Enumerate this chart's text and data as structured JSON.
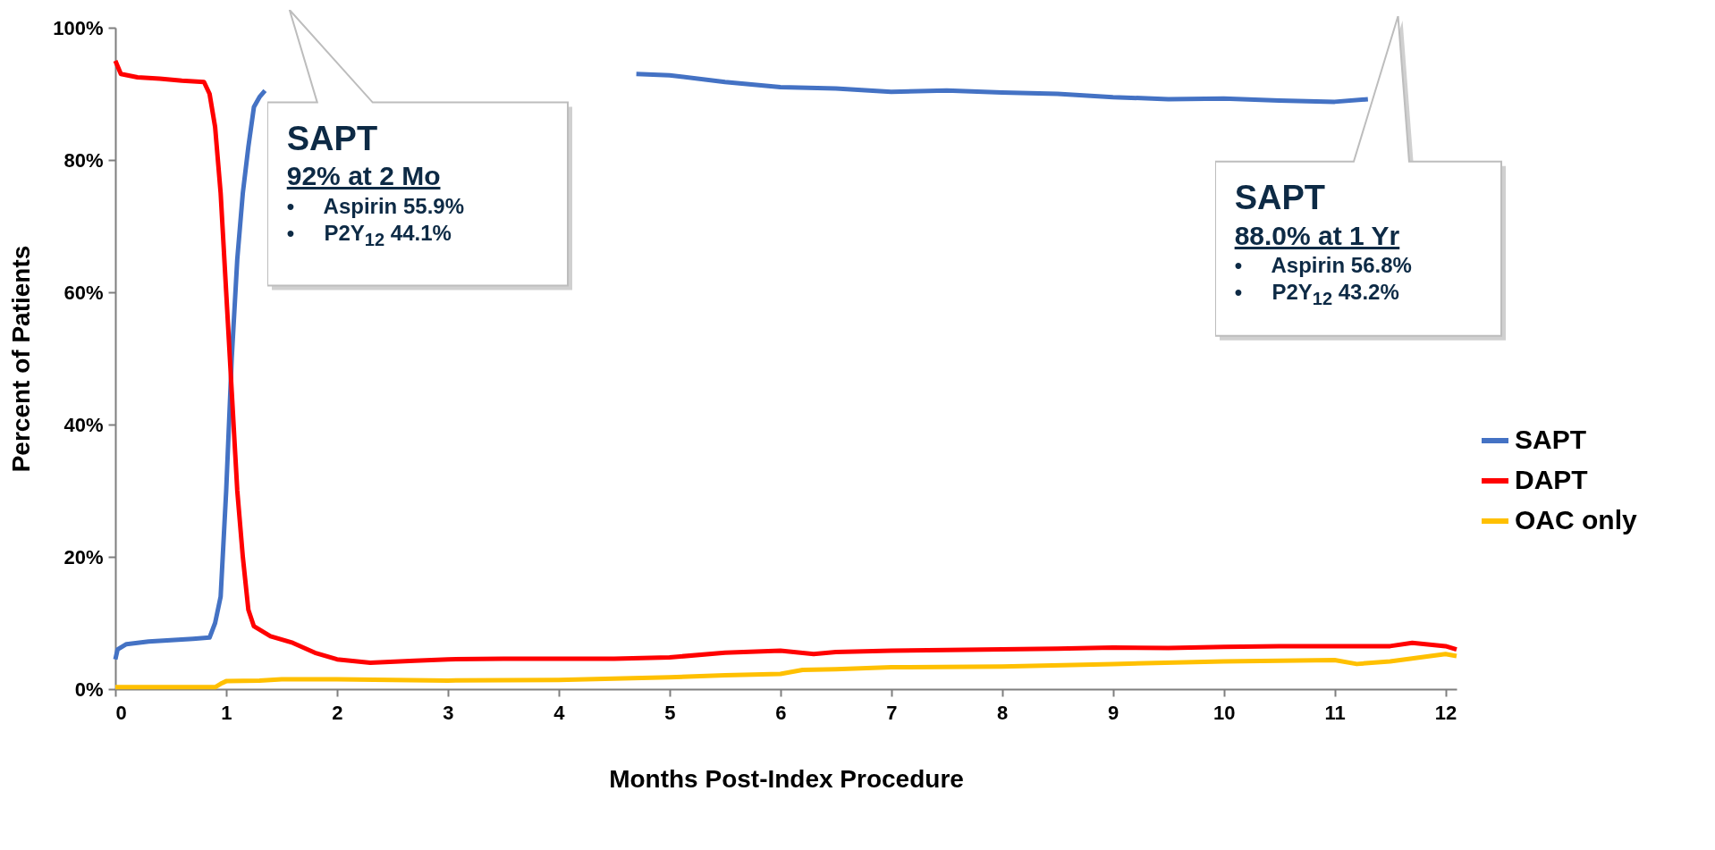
{
  "chart_data": {
    "type": "line",
    "xlabel": "Months Post-Index Procedure",
    "ylabel": "Percent of Patients",
    "xlim": [
      0,
      12.1
    ],
    "xticks": [
      0,
      1,
      2,
      3,
      4,
      5,
      6,
      7,
      8,
      9,
      10,
      11,
      12
    ],
    "ylim": [
      0,
      100
    ],
    "yticks": [
      {
        "value": 0,
        "label": "0%"
      },
      {
        "value": 20,
        "label": "20%"
      },
      {
        "value": 40,
        "label": "40%"
      },
      {
        "value": 60,
        "label": "60%"
      },
      {
        "value": 80,
        "label": "80%"
      },
      {
        "value": 100,
        "label": "100%"
      }
    ],
    "grid": false,
    "legend": "right",
    "marker": "none",
    "line_style": "solid",
    "annotations": [
      "SAPT\n92% at 2 Mo\n•     Aspirin 55.9%\n•     P2Y$_{12}$ 44.1%",
      "SAPT\n88.0% at 1 Yr\n•     Aspirin 56.8%\n•     P2Y$_{12}$ 43.2%"
    ],
    "series": [
      {
        "name": "SAPT",
        "color": "#4472c4",
        "x": [
          0,
          0.02,
          0.1,
          0.2,
          0.3,
          0.5,
          0.7,
          0.85,
          0.9,
          0.95,
          1.0,
          1.05,
          1.1,
          1.15,
          1.2,
          1.25,
          1.3,
          1.35,
          1.4,
          4.7,
          5,
          5.5,
          6,
          6.5,
          7,
          7.5,
          8,
          8.5,
          9,
          9.5,
          10,
          10.5,
          11,
          11.3
        ],
        "values": [
          4.5,
          6,
          6.8,
          7,
          7.2,
          7.4,
          7.6,
          7.8,
          10,
          14,
          30,
          50,
          65,
          75,
          82,
          88,
          89.5,
          90.5,
          null,
          93,
          92.8,
          91.8,
          91,
          90.8,
          90.3,
          90.5,
          90.2,
          90,
          89.5,
          89.2,
          89.3,
          89,
          88.8,
          89.2
        ]
      },
      {
        "name": "DAPT",
        "color": "#ff0000",
        "x": [
          0,
          0.05,
          0.2,
          0.4,
          0.6,
          0.8,
          0.85,
          0.9,
          0.95,
          1.0,
          1.05,
          1.1,
          1.15,
          1.2,
          1.25,
          1.4,
          1.6,
          1.8,
          2,
          2.3,
          2.7,
          3,
          3.5,
          4,
          4.5,
          5,
          5.5,
          6,
          6.3,
          6.5,
          7,
          7.5,
          8,
          8.5,
          9,
          9.5,
          10,
          10.5,
          11,
          11.5,
          11.7,
          12,
          12.1
        ],
        "values": [
          95,
          93,
          92.5,
          92.3,
          92,
          91.8,
          90,
          85,
          75,
          60,
          45,
          30,
          20,
          12,
          9.5,
          8,
          7,
          5.5,
          4.5,
          4,
          4.3,
          4.5,
          4.6,
          4.6,
          4.6,
          4.8,
          5.5,
          5.8,
          5.3,
          5.6,
          5.8,
          5.9,
          6,
          6.1,
          6.3,
          6.2,
          6.4,
          6.5,
          6.5,
          6.5,
          7,
          6.5,
          6
        ]
      },
      {
        "name": "OAC only",
        "color": "#ffc000",
        "x": [
          0,
          0.9,
          0.95,
          1.0,
          1.3,
          1.5,
          2,
          3,
          4,
          4.5,
          5,
          5.5,
          6,
          6.2,
          6.5,
          7,
          8,
          9,
          10,
          11,
          11.2,
          11.5,
          12,
          12.1
        ],
        "values": [
          0.3,
          0.3,
          0.8,
          1.2,
          1.3,
          1.5,
          1.5,
          1.3,
          1.4,
          1.6,
          1.8,
          2.1,
          2.3,
          2.9,
          3,
          3.3,
          3.4,
          3.8,
          4.2,
          4.4,
          3.8,
          4.2,
          5.3,
          5
        ]
      }
    ]
  }
}
